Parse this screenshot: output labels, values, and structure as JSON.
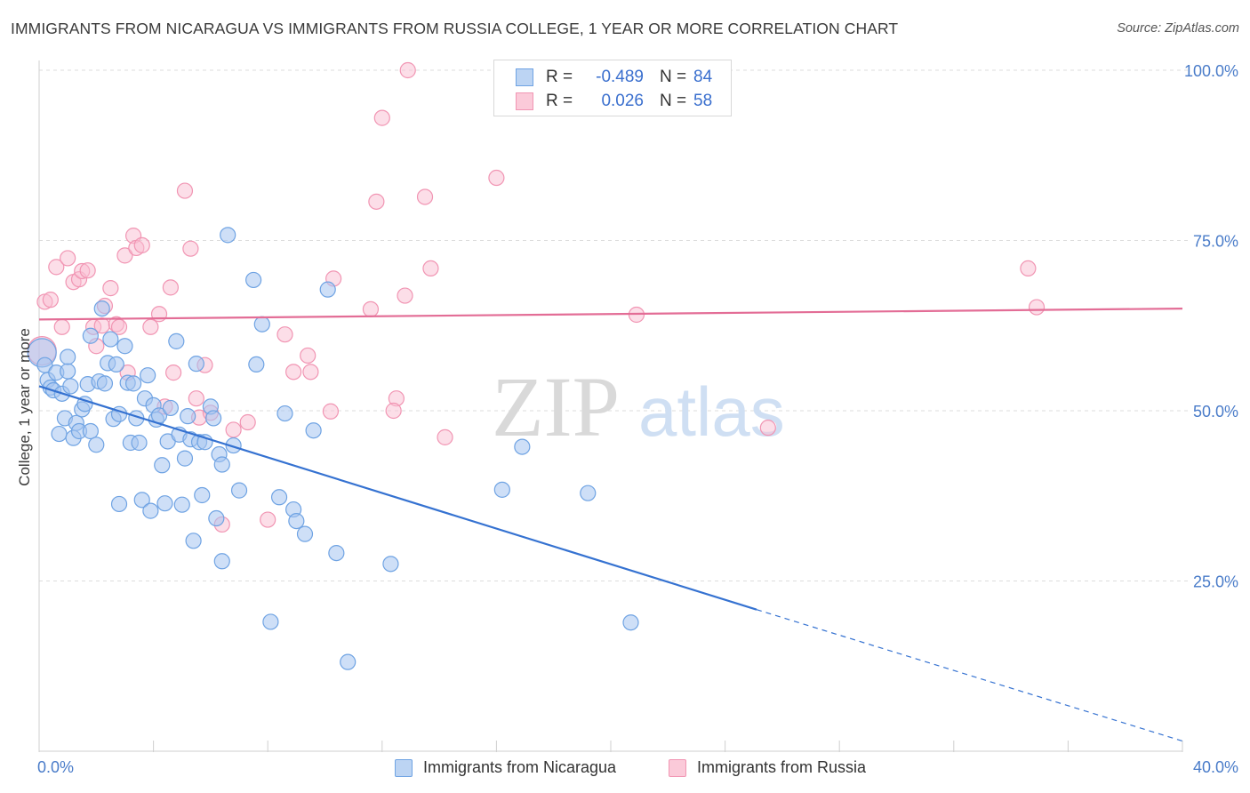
{
  "title": "IMMIGRANTS FROM NICARAGUA VS IMMIGRANTS FROM RUSSIA COLLEGE, 1 YEAR OR MORE CORRELATION CHART",
  "source": "Source: ZipAtlas.com",
  "watermark": {
    "zip": "ZIP",
    "atlas": "atlas"
  },
  "legend_top": {
    "rows": [
      {
        "r_label": "R =",
        "r_value": "-0.489",
        "n_label": "N =",
        "n_value": "84"
      },
      {
        "r_label": "R =",
        "r_value": "0.026",
        "n_label": "N =",
        "n_value": "58"
      }
    ]
  },
  "chart_data": {
    "type": "scatter",
    "title": "IMMIGRANTS FROM NICARAGUA VS IMMIGRANTS FROM RUSSIA COLLEGE, 1 YEAR OR MORE CORRELATION CHART",
    "xlabel": "",
    "ylabel": "College, 1 year or more",
    "xlim": [
      0,
      40
    ],
    "ylim": [
      0,
      100
    ],
    "x_tick_labels": [
      "0.0%",
      "40.0%"
    ],
    "y_tick_labels": [
      "25.0%",
      "50.0%",
      "75.0%",
      "100.0%"
    ],
    "y_ticks": [
      25,
      50,
      75,
      100
    ],
    "grid": true,
    "legend_position": "bottom",
    "colors": {
      "nicaragua": "#6fa3e3",
      "russia": "#f195b3",
      "nicaragua_line": "#3572d1",
      "russia_line": "#e36d96"
    },
    "series": [
      {
        "name": "Immigrants from Nicaragua",
        "R": -0.489,
        "N": 84,
        "trend": {
          "x": [
            0,
            25.1
          ],
          "y": [
            53.6,
            20.8
          ],
          "dashed_to": [
            40,
            1.5
          ]
        },
        "points": [
          [
            0.1,
            58.5
          ],
          [
            0.2,
            56.7
          ],
          [
            0.3,
            54.5
          ],
          [
            0.4,
            53.4
          ],
          [
            0.5,
            53.0
          ],
          [
            0.6,
            55.6
          ],
          [
            0.7,
            46.6
          ],
          [
            0.8,
            52.5
          ],
          [
            0.9,
            48.9
          ],
          [
            1.0,
            55.8
          ],
          [
            1.0,
            57.9
          ],
          [
            1.1,
            53.6
          ],
          [
            1.2,
            46.0
          ],
          [
            1.3,
            48.2
          ],
          [
            1.4,
            47.0
          ],
          [
            1.5,
            50.2
          ],
          [
            1.6,
            51.0
          ],
          [
            1.7,
            53.9
          ],
          [
            1.8,
            61.0
          ],
          [
            1.8,
            47.0
          ],
          [
            2.0,
            45.0
          ],
          [
            2.1,
            54.3
          ],
          [
            2.2,
            65.0
          ],
          [
            2.3,
            54.0
          ],
          [
            2.4,
            57.0
          ],
          [
            2.5,
            60.5
          ],
          [
            2.6,
            48.8
          ],
          [
            2.7,
            56.8
          ],
          [
            2.8,
            49.5
          ],
          [
            2.8,
            36.3
          ],
          [
            3.0,
            59.5
          ],
          [
            3.1,
            54.1
          ],
          [
            3.2,
            45.3
          ],
          [
            3.3,
            54.0
          ],
          [
            3.4,
            48.9
          ],
          [
            3.5,
            45.3
          ],
          [
            3.6,
            36.9
          ],
          [
            3.7,
            51.8
          ],
          [
            3.8,
            55.2
          ],
          [
            3.9,
            35.3
          ],
          [
            4.0,
            50.8
          ],
          [
            4.1,
            48.7
          ],
          [
            4.2,
            49.3
          ],
          [
            4.3,
            42.0
          ],
          [
            4.4,
            36.4
          ],
          [
            4.5,
            45.5
          ],
          [
            4.6,
            50.4
          ],
          [
            4.8,
            60.2
          ],
          [
            4.9,
            46.5
          ],
          [
            5.0,
            36.2
          ],
          [
            5.1,
            43.0
          ],
          [
            5.2,
            49.2
          ],
          [
            5.3,
            45.8
          ],
          [
            5.4,
            30.9
          ],
          [
            5.5,
            56.9
          ],
          [
            5.6,
            45.4
          ],
          [
            5.7,
            37.6
          ],
          [
            5.8,
            45.4
          ],
          [
            6.0,
            50.6
          ],
          [
            6.1,
            48.9
          ],
          [
            6.2,
            34.2
          ],
          [
            6.3,
            43.6
          ],
          [
            6.4,
            42.1
          ],
          [
            6.4,
            27.9
          ],
          [
            6.6,
            75.8
          ],
          [
            6.8,
            44.9
          ],
          [
            7.0,
            38.3
          ],
          [
            7.5,
            69.2
          ],
          [
            7.6,
            56.8
          ],
          [
            7.8,
            62.7
          ],
          [
            8.1,
            19.0
          ],
          [
            8.4,
            37.3
          ],
          [
            8.6,
            49.6
          ],
          [
            8.9,
            35.5
          ],
          [
            9.0,
            33.8
          ],
          [
            9.3,
            31.9
          ],
          [
            9.6,
            47.1
          ],
          [
            10.1,
            67.8
          ],
          [
            10.4,
            29.1
          ],
          [
            10.8,
            13.1
          ],
          [
            12.3,
            27.5
          ],
          [
            16.9,
            44.7
          ],
          [
            16.2,
            38.4
          ],
          [
            19.2,
            37.9
          ],
          [
            20.7,
            18.9
          ]
        ]
      },
      {
        "name": "Immigrants from Russia",
        "R": 0.026,
        "N": 58,
        "trend": {
          "x": [
            0,
            40
          ],
          "y": [
            63.4,
            65.0
          ]
        },
        "points": [
          [
            0.1,
            58.8
          ],
          [
            0.2,
            66.0
          ],
          [
            0.4,
            66.3
          ],
          [
            0.6,
            71.1
          ],
          [
            0.8,
            62.3
          ],
          [
            1.0,
            72.4
          ],
          [
            1.2,
            68.9
          ],
          [
            1.4,
            69.3
          ],
          [
            1.5,
            70.5
          ],
          [
            1.7,
            70.6
          ],
          [
            1.9,
            62.3
          ],
          [
            2.0,
            59.5
          ],
          [
            2.2,
            62.5
          ],
          [
            2.3,
            65.4
          ],
          [
            2.5,
            68.0
          ],
          [
            2.7,
            62.7
          ],
          [
            2.8,
            62.3
          ],
          [
            3.0,
            72.8
          ],
          [
            3.1,
            55.6
          ],
          [
            3.3,
            75.7
          ],
          [
            3.4,
            73.9
          ],
          [
            3.6,
            74.3
          ],
          [
            3.9,
            62.3
          ],
          [
            4.2,
            64.2
          ],
          [
            4.4,
            50.6
          ],
          [
            4.6,
            68.1
          ],
          [
            4.7,
            55.6
          ],
          [
            5.1,
            82.3
          ],
          [
            5.3,
            73.8
          ],
          [
            5.5,
            51.8
          ],
          [
            5.6,
            49.0
          ],
          [
            5.8,
            56.7
          ],
          [
            6.0,
            49.7
          ],
          [
            6.4,
            33.3
          ],
          [
            6.8,
            47.2
          ],
          [
            7.3,
            48.3
          ],
          [
            8.0,
            34.0
          ],
          [
            8.6,
            61.2
          ],
          [
            8.9,
            55.7
          ],
          [
            9.4,
            58.1
          ],
          [
            9.5,
            55.7
          ],
          [
            10.2,
            49.9
          ],
          [
            10.3,
            69.4
          ],
          [
            11.6,
            64.9
          ],
          [
            11.8,
            80.7
          ],
          [
            12.0,
            93.0
          ],
          [
            12.5,
            51.8
          ],
          [
            12.4,
            50.0
          ],
          [
            12.8,
            66.9
          ],
          [
            12.9,
            100.0
          ],
          [
            13.5,
            81.4
          ],
          [
            13.7,
            70.9
          ],
          [
            14.2,
            46.1
          ],
          [
            16.0,
            84.2
          ],
          [
            20.9,
            64.1
          ],
          [
            25.5,
            47.5
          ],
          [
            34.6,
            70.9
          ],
          [
            34.9,
            65.2
          ]
        ]
      }
    ]
  }
}
